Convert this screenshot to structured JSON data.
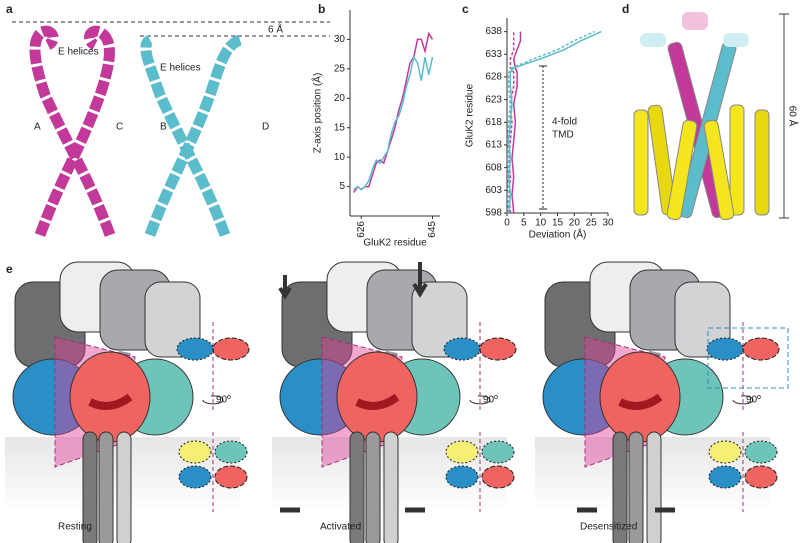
{
  "panel_labels": [
    "a",
    "b",
    "c",
    "d",
    "e"
  ],
  "panel_a": {
    "distance": "6 Å",
    "helix_labels": [
      "E helices",
      "E helices"
    ],
    "subunits": [
      "A",
      "C",
      "B",
      "D"
    ]
  },
  "panel_d": {
    "scale": "60 Å"
  },
  "panel_e": {
    "rotation_labels": [
      "90º",
      "90º",
      "90º"
    ],
    "states": [
      "Resting",
      "Activated",
      "Desensitized"
    ]
  },
  "chart_data": [
    {
      "type": "line",
      "x": [
        624,
        625,
        626,
        627,
        628,
        629,
        630,
        631,
        632,
        633,
        634,
        635,
        636,
        637,
        638,
        639,
        640,
        641,
        642,
        643,
        644,
        645
      ],
      "xlim": [
        623,
        647
      ],
      "xticks": [
        626,
        645
      ],
      "ylim": [
        0,
        35
      ],
      "yticks": [
        5,
        10,
        15,
        20,
        25,
        30
      ],
      "x_label": "GluK2 residue",
      "y_label": "Z-axis position (Å)",
      "series": [
        {
          "color": "#c2399a",
          "values": [
            4,
            5,
            4.5,
            5,
            5,
            7,
            9,
            9.5,
            9,
            11,
            13,
            15,
            18,
            20,
            23,
            26,
            27,
            30,
            30,
            28,
            31,
            30
          ]
        },
        {
          "color": "#5bbccc",
          "values": [
            4.5,
            5,
            4.5,
            5,
            6,
            8,
            9.5,
            9,
            10,
            11,
            14,
            16,
            17,
            19,
            22,
            24,
            27,
            26,
            23,
            27,
            24,
            27
          ]
        }
      ]
    },
    {
      "type": "line",
      "y": [
        598,
        602,
        606,
        610,
        614,
        618,
        622,
        626,
        629,
        630,
        632,
        634,
        636,
        638
      ],
      "ylim": [
        598,
        641
      ],
      "yticks": [
        598,
        603,
        608,
        613,
        618,
        623,
        628,
        633,
        638
      ],
      "xlim": [
        0,
        30
      ],
      "xticks": [
        0,
        5,
        10,
        15,
        20,
        25,
        30
      ],
      "x_label": "Deviation (Å)",
      "y_label": "GluK2 residue",
      "annotation": [
        "4-fold",
        "TMD"
      ],
      "series": [
        {
          "color": "#c2399a",
          "line_style": "solid",
          "values": [
            2,
            1.5,
            2,
            1.5,
            2,
            2.5,
            2,
            3,
            3,
            2.5,
            2,
            3,
            4,
            4
          ]
        },
        {
          "color": "#c2399a",
          "line_style": "dashed",
          "values": [
            1,
            0.5,
            1,
            0.5,
            1,
            1.5,
            1,
            2,
            2,
            1,
            1,
            2,
            2,
            2
          ]
        },
        {
          "color": "#5bbccc",
          "line_style": "solid",
          "values": [
            0.5,
            1,
            0.5,
            1,
            0.5,
            1,
            1.5,
            1,
            1,
            2,
            10,
            17,
            22,
            28
          ]
        },
        {
          "color": "#5bbccc",
          "line_style": "dashed",
          "values": [
            0.3,
            0.5,
            0.3,
            0.5,
            0.3,
            0.5,
            1,
            0.5,
            0.5,
            1.5,
            8,
            15,
            20,
            26
          ]
        }
      ]
    }
  ]
}
